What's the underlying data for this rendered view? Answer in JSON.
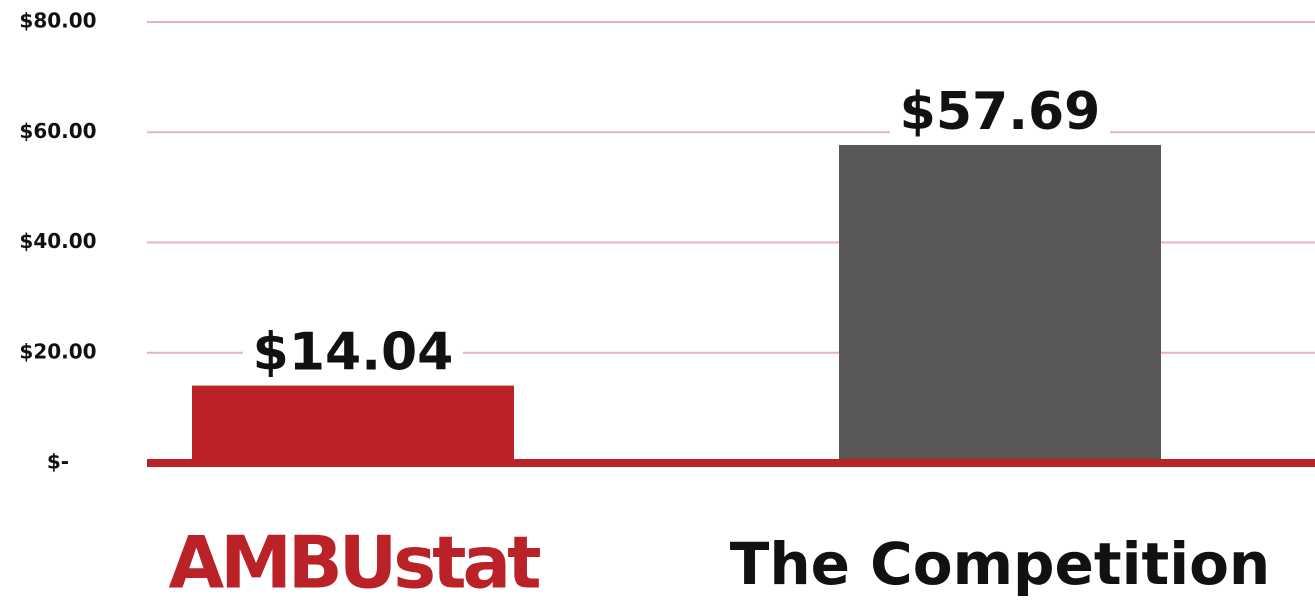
{
  "chart_data": {
    "type": "bar",
    "categories": [
      "AMBUstat",
      "The Competition"
    ],
    "values": [
      14.04,
      57.69
    ],
    "value_labels": [
      "$14.04",
      "$57.69"
    ],
    "colors": [
      "#bb2228",
      "#5a5856"
    ],
    "ylim": [
      0,
      80
    ],
    "yticks": [
      {
        "value": 0,
        "label": "$-"
      },
      {
        "value": 20,
        "label": "$20.00"
      },
      {
        "value": 40,
        "label": "$40.00"
      },
      {
        "value": 60,
        "label": "$60.00"
      },
      {
        "value": 80,
        "label": "$80.00"
      }
    ],
    "grid": true
  }
}
